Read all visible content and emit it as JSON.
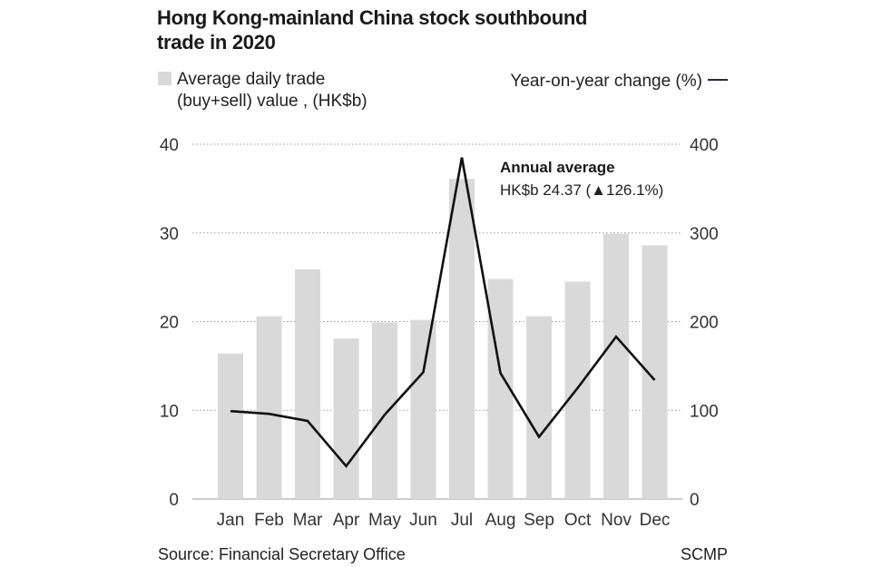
{
  "chart_data": {
    "type": "bar",
    "title": "Hong Kong-mainland China stock southbound trade in 2020",
    "categories": [
      "Jan",
      "Feb",
      "Mar",
      "Apr",
      "May",
      "Jun",
      "Jul",
      "Aug",
      "Sep",
      "Oct",
      "Nov",
      "Dec"
    ],
    "series": [
      {
        "name": "Average daily trade (buy+sell) value , (HK$b)",
        "type": "bar",
        "axis": "left",
        "values": [
          16.4,
          20.6,
          25.9,
          18.1,
          19.9,
          20.2,
          36.1,
          24.8,
          20.6,
          24.5,
          29.9,
          28.6
        ]
      },
      {
        "name": "Year-on-year change (%)",
        "type": "line",
        "axis": "right",
        "values": [
          99,
          96,
          88,
          37,
          95,
          143,
          385,
          142,
          70,
          125,
          183,
          134
        ]
      }
    ],
    "ylim_left": [
      0,
      40
    ],
    "yticks_left": [
      "0",
      "10",
      "20",
      "30",
      "40"
    ],
    "ylim_right": [
      0,
      400
    ],
    "yticks_right": [
      "0",
      "100",
      "200",
      "300",
      "400"
    ],
    "grid": "horizontal-dotted",
    "legend_left_line1": "Average daily trade",
    "legend_left_line2": "(buy+sell) value , (HK$b)",
    "legend_right": "Year-on-year change (%)",
    "annotation": {
      "title": "Annual average",
      "text": "HK$b 24.37 (▲126.1%)"
    },
    "colors": {
      "bar": "#d9d9d9",
      "line": "#111111",
      "legend_line": "#1b2a4a",
      "grid": "#9a9a9a"
    }
  },
  "footer": {
    "source": "Source: Financial Secretary Office",
    "credit": "SCMP"
  }
}
